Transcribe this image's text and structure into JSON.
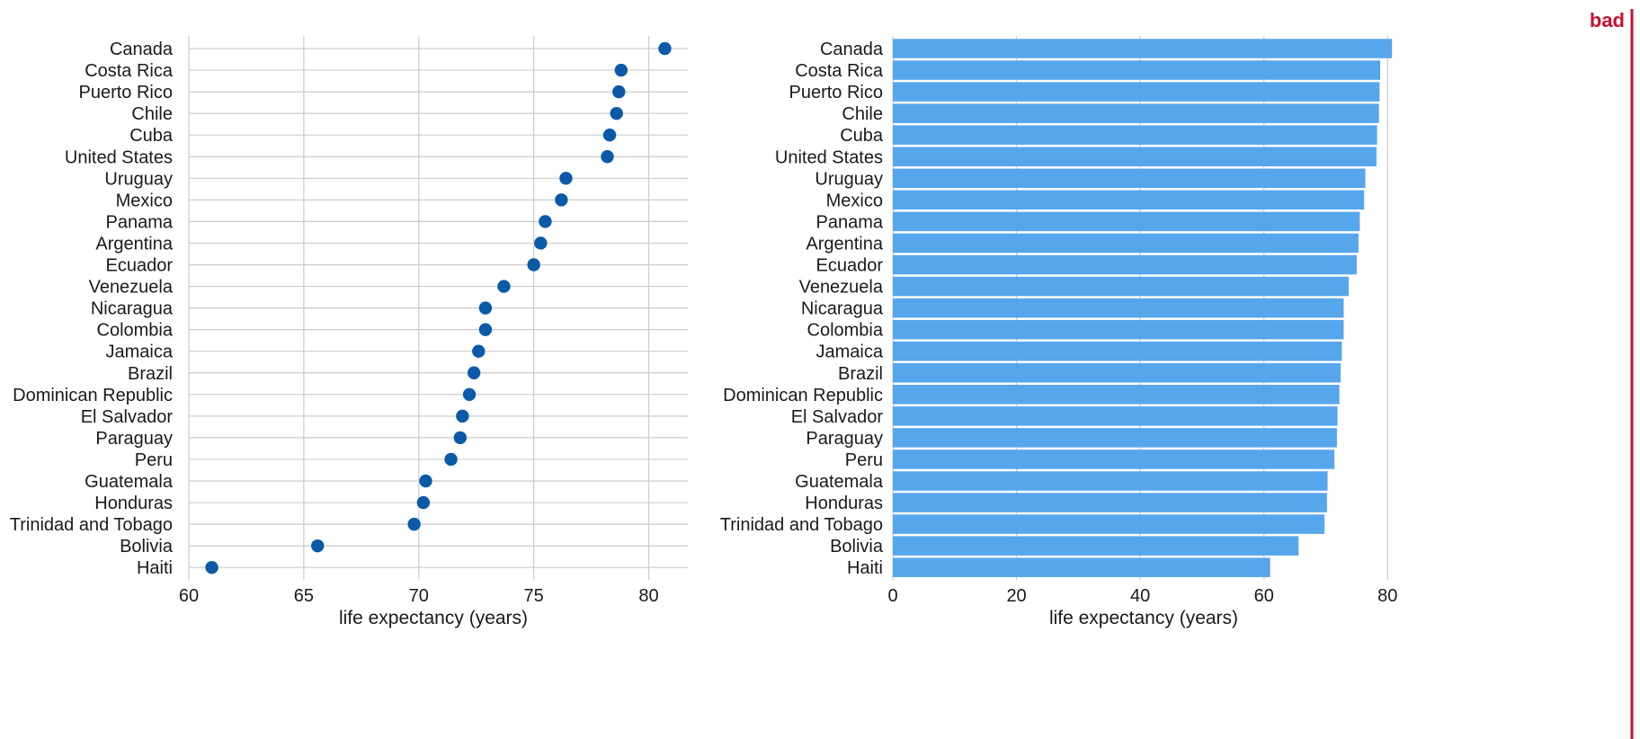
{
  "badge": {
    "label": "bad",
    "color": "#c8102e"
  },
  "colors": {
    "dot": "#0b5aa7",
    "bar": "#56a6ec",
    "grid": "#cccccc",
    "text": "#1a1a1a"
  },
  "chart_data": [
    {
      "type": "scatter",
      "categories": [
        "Canada",
        "Costa Rica",
        "Puerto Rico",
        "Chile",
        "Cuba",
        "United States",
        "Uruguay",
        "Mexico",
        "Panama",
        "Argentina",
        "Ecuador",
        "Venezuela",
        "Nicaragua",
        "Colombia",
        "Jamaica",
        "Brazil",
        "Dominican Republic",
        "El Salvador",
        "Paraguay",
        "Peru",
        "Guatemala",
        "Honduras",
        "Trinidad and Tobago",
        "Bolivia",
        "Haiti"
      ],
      "values": [
        80.7,
        78.8,
        78.7,
        78.6,
        78.3,
        78.2,
        76.4,
        76.2,
        75.5,
        75.3,
        75.0,
        73.7,
        72.9,
        72.9,
        72.6,
        72.4,
        72.2,
        71.9,
        71.8,
        71.4,
        70.3,
        70.2,
        69.8,
        65.6,
        61.0
      ],
      "xlabel": "life expectancy (years)",
      "xlim": [
        60,
        81.7
      ],
      "xticks": [
        60,
        65,
        70,
        75,
        80
      ],
      "grid": true
    },
    {
      "type": "bar",
      "categories": [
        "Canada",
        "Costa Rica",
        "Puerto Rico",
        "Chile",
        "Cuba",
        "United States",
        "Uruguay",
        "Mexico",
        "Panama",
        "Argentina",
        "Ecuador",
        "Venezuela",
        "Nicaragua",
        "Colombia",
        "Jamaica",
        "Brazil",
        "Dominican Republic",
        "El Salvador",
        "Paraguay",
        "Peru",
        "Guatemala",
        "Honduras",
        "Trinidad and Tobago",
        "Bolivia",
        "Haiti"
      ],
      "values": [
        80.7,
        78.8,
        78.7,
        78.6,
        78.3,
        78.2,
        76.4,
        76.2,
        75.5,
        75.3,
        75.0,
        73.7,
        72.9,
        72.9,
        72.6,
        72.4,
        72.2,
        71.9,
        71.8,
        71.4,
        70.3,
        70.2,
        69.8,
        65.6,
        61.0
      ],
      "xlabel": "life expectancy (years)",
      "xlim": [
        0,
        81.7
      ],
      "xticks": [
        0,
        20,
        40,
        60,
        80
      ],
      "grid": true
    }
  ]
}
